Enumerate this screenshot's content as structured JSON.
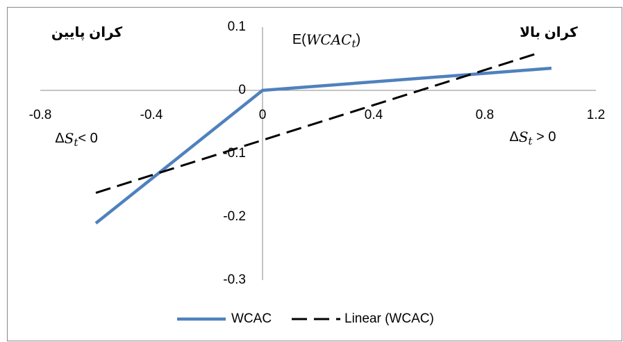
{
  "chart_data": {
    "type": "line",
    "xlim": [
      -0.8,
      1.2
    ],
    "xticks": [
      -0.8,
      -0.4,
      0,
      0.4,
      0.8,
      1.2
    ],
    "ylim": [
      -0.3,
      0.1
    ],
    "yticks": [
      -0.3,
      -0.2,
      -0.1,
      0,
      0.1
    ],
    "legend": "bottom",
    "series": [
      {
        "name": "WCAC",
        "color": "#4f81bd",
        "x": [
          -0.6,
          0,
          1.04
        ],
        "values": [
          -0.21,
          0,
          0.035
        ]
      },
      {
        "name": "Linear (WCAC)",
        "color": "#000000",
        "dashed": true,
        "x": [
          -0.6,
          1.0
        ],
        "values": [
          -0.162,
          0.06
        ]
      }
    ],
    "annotations": [
      {
        "parts": [
          {
            "text": "کران پایین"
          }
        ]
      },
      {
        "parts": [
          {
            "text": "کران بالا"
          }
        ]
      },
      {
        "parts": [
          {
            "text": "E("
          },
          {
            "text": "WCAC",
            "italic": true
          },
          {
            "text": "t",
            "sub": true
          },
          {
            "text": ")"
          }
        ]
      },
      {
        "parts": [
          {
            "text": "Δ"
          },
          {
            "text": "S",
            "italic": true
          },
          {
            "text": "t",
            "sub": true
          },
          {
            "text": "< 0"
          }
        ]
      },
      {
        "parts": [
          {
            "text": "Δ"
          },
          {
            "text": "S",
            "italic": true
          },
          {
            "text": "t",
            "sub": true
          },
          {
            "text": " > 0"
          }
        ]
      }
    ]
  }
}
